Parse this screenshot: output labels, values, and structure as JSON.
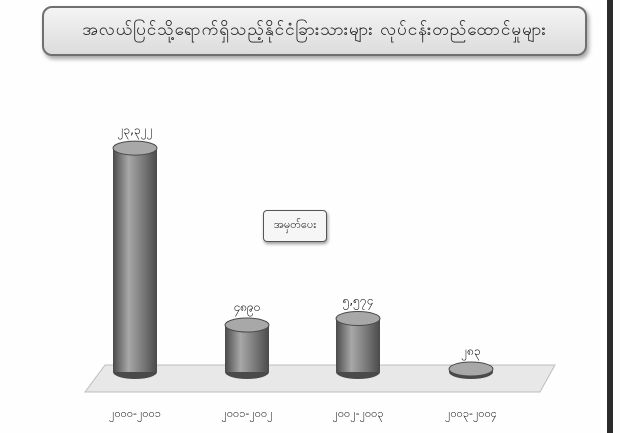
{
  "chart_data": {
    "type": "bar",
    "title": "အလယ်ပြင်သို့ရောက်ရှိသည့်နိုင်ငံခြားသားများ လုပ်ငန်းတည်ထောင်မှုများ",
    "categories": [
      "၂၀၀၀-၂၀၀၁",
      "၂၀၀၁-၂၀၀၂",
      "၂၀၀၂-၂၀၀၃",
      "၂၀၀၃-၂၀၀၄"
    ],
    "values": [
      23322,
      4890,
      5574,
      283
    ],
    "data_labels": [
      "၂၃,၃၂၂",
      "၄၈၉၀",
      "၅,၅၇၄",
      "၂၈၃"
    ],
    "legend": [
      "အမှတ်ပေး"
    ],
    "ylim": [
      0,
      25000
    ],
    "grid": false,
    "legend_position": "center",
    "colors": {
      "bar": "#777777",
      "bar_highlight": "#a8a8a8",
      "bar_shadow": "#4a4a4a",
      "floor": "#e8e8e8",
      "text": "#222222"
    }
  }
}
